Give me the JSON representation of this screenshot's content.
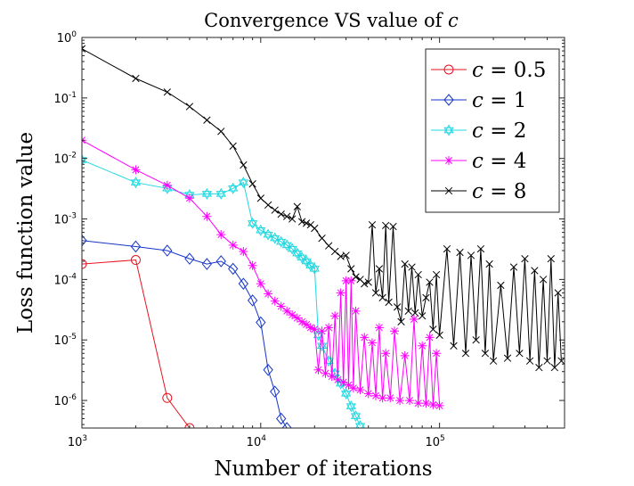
{
  "chart_data": {
    "type": "line",
    "title": "Convergence VS value of c",
    "title_prefix": "Convergence VS value of ",
    "title_var": "c",
    "xlabel": "Number of iterations",
    "ylabel": "Loss function value",
    "xscale": "log",
    "yscale": "log",
    "xlim": [
      1000,
      500000
    ],
    "ylim": [
      3.5e-07,
      1
    ],
    "xticks": [
      {
        "value": 1000,
        "base": "10",
        "exp": "3"
      },
      {
        "value": 10000,
        "base": "10",
        "exp": "4"
      },
      {
        "value": 100000,
        "base": "10",
        "exp": "5"
      }
    ],
    "yticks": [
      {
        "value": 1,
        "base": "10",
        "exp": "0"
      },
      {
        "value": 0.1,
        "base": "10",
        "exp": "-1"
      },
      {
        "value": 0.01,
        "base": "10",
        "exp": "-2"
      },
      {
        "value": 0.001,
        "base": "10",
        "exp": "-3"
      },
      {
        "value": 0.0001,
        "base": "10",
        "exp": "-4"
      },
      {
        "value": 1e-05,
        "base": "10",
        "exp": "-5"
      },
      {
        "value": 1e-06,
        "base": "10",
        "exp": "-6"
      }
    ],
    "grid": false,
    "legend_position": "top-right",
    "series": [
      {
        "name": "c = 0.5",
        "var": "c",
        "value": "0.5",
        "color": "#e8121f",
        "marker": "circle",
        "x": [
          1000,
          2000,
          3000,
          4000
        ],
        "y": [
          0.00018,
          0.00021,
          1.1e-06,
          3.5e-07
        ]
      },
      {
        "name": "c = 1",
        "var": "c",
        "value": "1",
        "color": "#1434c8",
        "marker": "diamond",
        "x": [
          1000,
          2000,
          3000,
          4000,
          5000,
          6000,
          7000,
          8000,
          9000,
          10000,
          11000,
          12000,
          13000,
          14000
        ],
        "y": [
          0.00044,
          0.00035,
          0.0003,
          0.00022,
          0.00018,
          0.0002,
          0.00015,
          8.5e-05,
          4.5e-05,
          1.95e-05,
          3.2e-06,
          1.4e-06,
          5e-07,
          3.5e-07
        ]
      },
      {
        "name": "c = 2",
        "var": "c",
        "value": "2",
        "color": "#20d8e0",
        "marker": "hexagram",
        "x": [
          1000,
          2000,
          3000,
          4000,
          5000,
          6000,
          7000,
          8000,
          9000,
          10000,
          11000,
          12000,
          13000,
          14000,
          15000,
          16000,
          17000,
          18000,
          19000,
          20000,
          21000,
          22000,
          24000,
          26000,
          28000,
          30000,
          32000,
          34000,
          36000
        ],
        "y": [
          0.0094,
          0.004,
          0.0032,
          0.0025,
          0.0026,
          0.0026,
          0.0032,
          0.004,
          0.00085,
          0.00065,
          0.00055,
          0.00048,
          0.00042,
          0.00037,
          0.00032,
          0.00027,
          0.00023,
          0.0002,
          0.00017,
          0.00015,
          1.2e-05,
          8e-06,
          4.5e-06,
          2.8e-06,
          1.9e-06,
          1.3e-06,
          8e-07,
          5.5e-07,
          3.8e-07
        ]
      },
      {
        "name": "c = 4",
        "var": "c",
        "value": "4",
        "color": "#ff00ff",
        "marker": "asterisk",
        "x": [
          1000,
          2000,
          3000,
          4000,
          5000,
          6000,
          7000,
          8000,
          9000,
          10000,
          11000,
          12000,
          13000,
          14000,
          15000,
          16000,
          17000,
          18000,
          19000,
          20000,
          21000,
          22000,
          23000,
          24000,
          25000,
          26000,
          27000,
          28000,
          29000,
          30000,
          31000,
          32000,
          33000,
          34000,
          36000,
          38000,
          40000,
          42000,
          44000,
          46000,
          48000,
          50000,
          53000,
          56000,
          60000,
          64000,
          68000,
          72000,
          76000,
          80000,
          84000,
          88000,
          92000,
          96000,
          100000
        ],
        "y": [
          0.02,
          0.0065,
          0.0036,
          0.0022,
          0.0011,
          0.00055,
          0.00037,
          0.00029,
          0.00017,
          8.5e-05,
          5.8e-05,
          4.4e-05,
          3.6e-05,
          3e-05,
          2.6e-05,
          2.3e-05,
          2e-05,
          1.8e-05,
          1.6e-05,
          1.5e-05,
          3.2e-06,
          1.4e-05,
          2.8e-06,
          1.6e-05,
          2.5e-06,
          2.5e-05,
          2.2e-06,
          6e-05,
          2e-06,
          9.5e-05,
          1.8e-06,
          9.5e-05,
          1.6e-06,
          3e-05,
          1.5e-06,
          1.1e-05,
          1.3e-06,
          9e-06,
          1.2e-06,
          1.6e-05,
          1.1e-06,
          6e-06,
          1.1e-06,
          1.4e-05,
          1e-06,
          5.5e-06,
          1e-06,
          2.2e-05,
          9e-07,
          8e-06,
          9e-07,
          1.1e-05,
          8.5e-07,
          6e-06,
          8.2e-07
        ]
      },
      {
        "name": "c = 8",
        "var": "c",
        "value": "8",
        "color": "#000000",
        "marker": "x",
        "x": [
          1000,
          2000,
          3000,
          4000,
          5000,
          6000,
          7000,
          8000,
          9000,
          10000,
          11000,
          12000,
          13000,
          14000,
          15000,
          16000,
          17000,
          18000,
          19000,
          20000,
          22000,
          24000,
          26000,
          28000,
          30000,
          32000,
          34000,
          36000,
          38000,
          40000,
          42000,
          44000,
          46000,
          48000,
          50000,
          52000,
          55000,
          58000,
          61000,
          64000,
          67000,
          70000,
          73000,
          76000,
          80000,
          84000,
          88000,
          92000,
          96000,
          100000,
          110000,
          120000,
          130000,
          140000,
          150000,
          160000,
          170000,
          180000,
          190000,
          200000,
          220000,
          240000,
          260000,
          280000,
          300000,
          320000,
          340000,
          360000,
          380000,
          400000,
          420000,
          440000,
          460000,
          480000
        ],
        "y": [
          0.65,
          0.21,
          0.125,
          0.072,
          0.043,
          0.028,
          0.016,
          0.0078,
          0.0038,
          0.0022,
          0.0017,
          0.0014,
          0.0012,
          0.0011,
          0.001,
          0.0016,
          0.0009,
          0.00085,
          0.0008,
          0.0007,
          0.00048,
          0.00036,
          0.00029,
          0.00024,
          0.00025,
          0.00015,
          0.00011,
          0.0001,
          8.5e-05,
          9e-05,
          0.0008,
          6e-05,
          0.00015,
          5e-05,
          0.00078,
          4.2e-05,
          0.00075,
          3.5e-05,
          2e-05,
          0.00018,
          3e-05,
          0.00016,
          2.8e-05,
          0.00012,
          2.5e-05,
          5e-05,
          9e-05,
          1.5e-05,
          0.00012,
          1.2e-05,
          0.00032,
          8e-06,
          0.00028,
          6e-06,
          0.00025,
          1e-05,
          0.00032,
          6e-06,
          0.00018,
          4.5e-06,
          8e-05,
          5e-06,
          0.00016,
          6e-06,
          0.00022,
          4.5e-06,
          0.00014,
          3.5e-06,
          0.0001,
          4.5e-06,
          0.00022,
          3.5e-06,
          6e-05,
          4.5e-06
        ]
      }
    ]
  }
}
